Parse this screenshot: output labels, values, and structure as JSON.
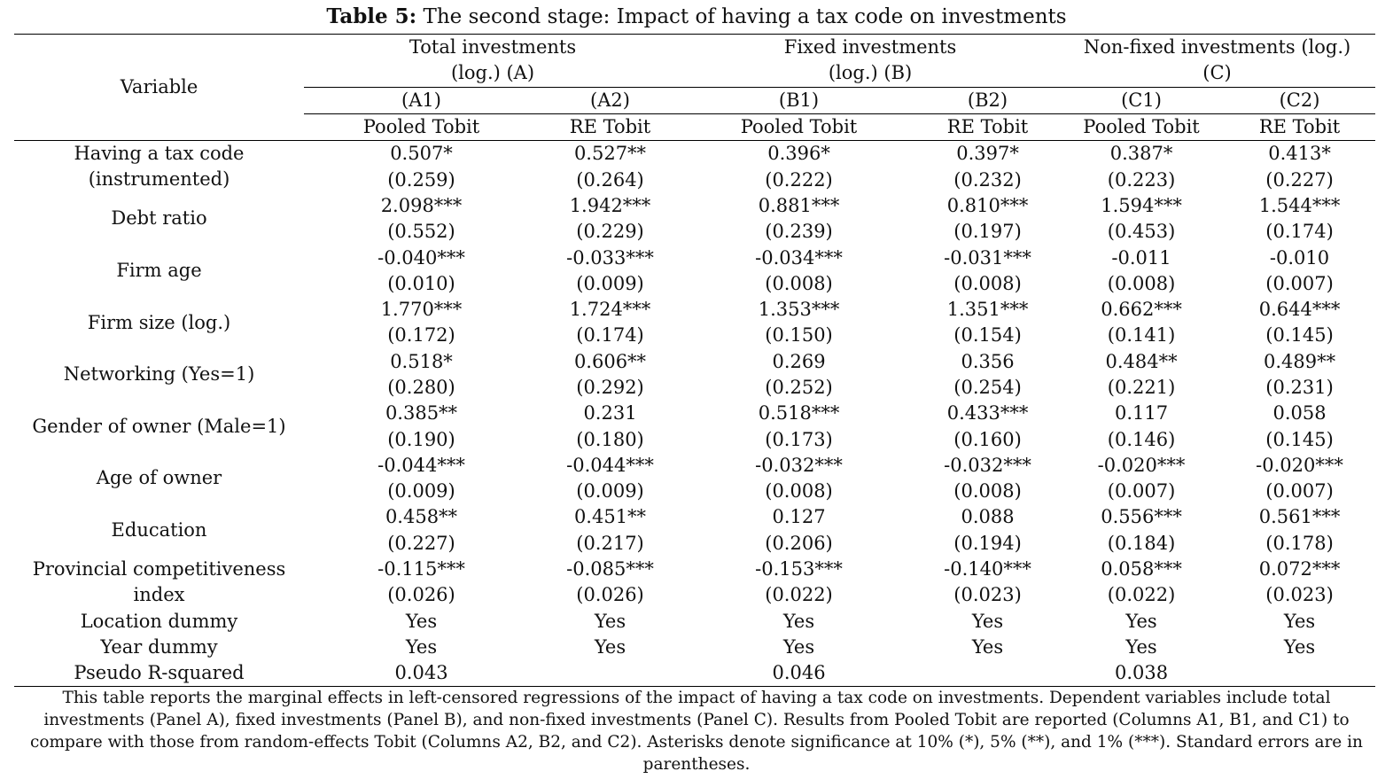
{
  "title": {
    "label": "Table 5:",
    "text": "The second stage: Impact of having a tax code on investments"
  },
  "header": {
    "variable": "Variable",
    "panels": [
      {
        "line1": "Total investments",
        "line2": "(log.) (A)"
      },
      {
        "line1": "Fixed investments",
        "line2": "(log.) (B)"
      },
      {
        "line1": "Non-fixed investments (log.)",
        "line2": "(C)"
      }
    ],
    "columns": [
      "(A1)",
      "(A2)",
      "(B1)",
      "(B2)",
      "(C1)",
      "(C2)"
    ],
    "models": [
      "Pooled Tobit",
      "RE Tobit",
      "Pooled Tobit",
      "RE Tobit",
      "Pooled Tobit",
      "RE Tobit"
    ]
  },
  "rows": [
    {
      "name": "Having a tax code (instrumented)",
      "line1": "Having a tax code",
      "line2": "(instrumented)",
      "coef": [
        "0.507*",
        "0.527**",
        "0.396*",
        "0.397*",
        "0.387*",
        "0.413*"
      ],
      "se": [
        "(0.259)",
        "(0.264)",
        "(0.222)",
        "(0.232)",
        "(0.223)",
        "(0.227)"
      ]
    },
    {
      "name": "Debt ratio",
      "coef": [
        "2.098***",
        "1.942***",
        "0.881***",
        "0.810***",
        "1.594***",
        "1.544***"
      ],
      "se": [
        "(0.552)",
        "(0.229)",
        "(0.239)",
        "(0.197)",
        "(0.453)",
        "(0.174)"
      ]
    },
    {
      "name": "Firm age",
      "coef": [
        "-0.040***",
        "-0.033***",
        "-0.034***",
        "-0.031***",
        "-0.011",
        "-0.010"
      ],
      "se": [
        "(0.010)",
        "(0.009)",
        "(0.008)",
        "(0.008)",
        "(0.008)",
        "(0.007)"
      ]
    },
    {
      "name": "Firm size (log.)",
      "coef": [
        "1.770***",
        "1.724***",
        "1.353***",
        "1.351***",
        "0.662***",
        "0.644***"
      ],
      "se": [
        "(0.172)",
        "(0.174)",
        "(0.150)",
        "(0.154)",
        "(0.141)",
        "(0.145)"
      ]
    },
    {
      "name": "Networking (Yes=1)",
      "coef": [
        "0.518*",
        "0.606**",
        "0.269",
        "0.356",
        "0.484**",
        "0.489**"
      ],
      "se": [
        "(0.280)",
        "(0.292)",
        "(0.252)",
        "(0.254)",
        "(0.221)",
        "(0.231)"
      ]
    },
    {
      "name": "Gender of owner (Male=1)",
      "coef": [
        "0.385**",
        "0.231",
        "0.518***",
        "0.433***",
        "0.117",
        "0.058"
      ],
      "se": [
        "(0.190)",
        "(0.180)",
        "(0.173)",
        "(0.160)",
        "(0.146)",
        "(0.145)"
      ]
    },
    {
      "name": "Age of owner",
      "coef": [
        "-0.044***",
        "-0.044***",
        "-0.032***",
        "-0.032***",
        "-0.020***",
        "-0.020***"
      ],
      "se": [
        "(0.009)",
        "(0.009)",
        "(0.008)",
        "(0.008)",
        "(0.007)",
        "(0.007)"
      ]
    },
    {
      "name": "Education",
      "coef": [
        "0.458**",
        "0.451**",
        "0.127",
        "0.088",
        "0.556***",
        "0.561***"
      ],
      "se": [
        "(0.227)",
        "(0.217)",
        "(0.206)",
        "(0.194)",
        "(0.184)",
        "(0.178)"
      ]
    },
    {
      "name": "Provincial competitiveness index",
      "line1": "Provincial competitiveness",
      "line2": "index",
      "coef": [
        "-0.115***",
        "-0.085***",
        "-0.153***",
        "-0.140***",
        "0.058***",
        "0.072***"
      ],
      "se": [
        "(0.026)",
        "(0.026)",
        "(0.022)",
        "(0.023)",
        "(0.022)",
        "(0.023)"
      ]
    }
  ],
  "location_dummy": {
    "name": "Location dummy",
    "values": [
      "Yes",
      "Yes",
      "Yes",
      "Yes",
      "Yes",
      "Yes"
    ]
  },
  "year_dummy": {
    "name": "Year dummy",
    "values": [
      "Yes",
      "Yes",
      "Yes",
      "Yes",
      "Yes",
      "Yes"
    ]
  },
  "pseudo_r2": {
    "name": "Pseudo R-squared",
    "values": [
      "0.043",
      "0.046",
      "0.038"
    ]
  },
  "note": "This table reports the marginal effects in left-censored regressions of the impact of having a tax code on investments. Dependent variables include total investments (Panel A), fixed investments (Panel B), and non-fixed investments (Panel C). Results from Pooled Tobit are reported (Columns A1, B1, and C1) to compare with those from random-effects Tobit (Columns A2, B2, and C2).  Asterisks denote significance at 10% (*), 5% (**), and 1% (***). Standard errors are in parentheses."
}
